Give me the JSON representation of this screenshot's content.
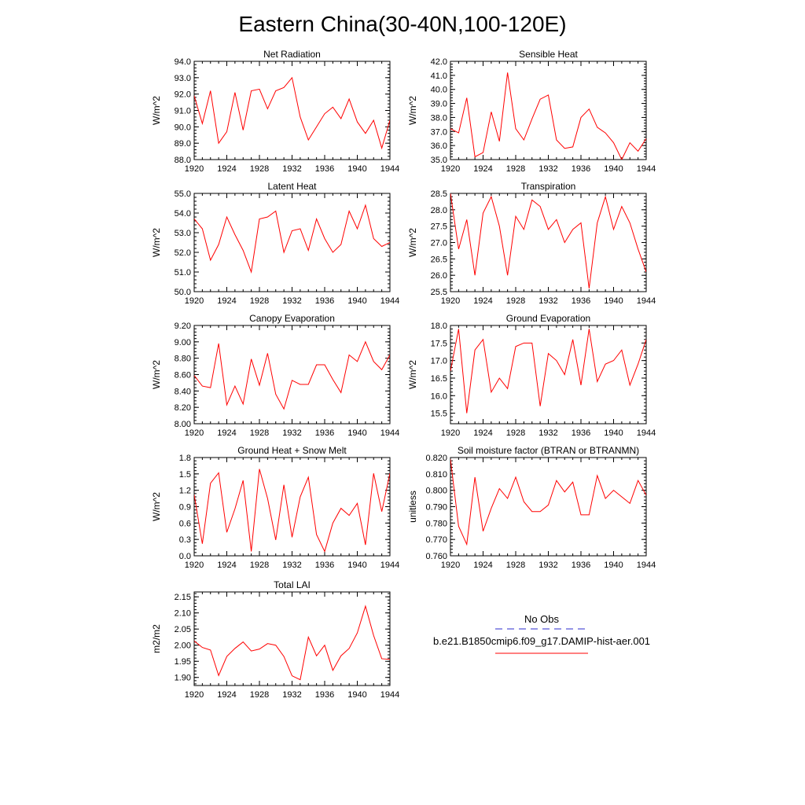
{
  "figure": {
    "title": "Eastern China(30-40N,100-120E)"
  },
  "legend": {
    "entries": [
      {
        "label": "No Obs",
        "color": "#2b2bcc",
        "dash": "dashed"
      },
      {
        "label": "b.e21.B1850cmip6.f09_g17.DAMIP-hist-aer.001",
        "color": "#ff0000",
        "dash": "solid"
      }
    ]
  },
  "chart_data": [
    {
      "type": "line",
      "title": "Net Radiation",
      "ylabel": "W/m^2",
      "xlim": [
        1920,
        1944
      ],
      "ylim": [
        88.0,
        94.0
      ],
      "xticks": [
        "1920",
        "1924",
        "1928",
        "1932",
        "1936",
        "1940",
        "1944"
      ],
      "yticks": [
        "88.0",
        "89.0",
        "90.0",
        "91.0",
        "92.0",
        "93.0",
        "94.0"
      ],
      "series": [
        {
          "color": "#ff0000",
          "x": [
            1920,
            1921,
            1922,
            1923,
            1924,
            1925,
            1926,
            1927,
            1928,
            1929,
            1930,
            1931,
            1932,
            1933,
            1934,
            1935,
            1936,
            1937,
            1938,
            1939,
            1940,
            1941,
            1942,
            1943,
            1944
          ],
          "values": [
            91.9,
            90.2,
            92.2,
            89.0,
            89.7,
            92.1,
            89.8,
            92.2,
            92.3,
            91.1,
            92.2,
            92.4,
            93.0,
            90.6,
            89.2,
            90.0,
            90.8,
            91.2,
            90.5,
            91.7,
            90.3,
            89.6,
            90.4,
            88.7,
            90.4
          ]
        }
      ]
    },
    {
      "type": "line",
      "title": "Sensible Heat",
      "ylabel": "W/m^2",
      "xlim": [
        1920,
        1944
      ],
      "ylim": [
        35.0,
        42.0
      ],
      "xticks": [
        "1920",
        "1924",
        "1928",
        "1932",
        "1936",
        "1940",
        "1944"
      ],
      "yticks": [
        "35.0",
        "36.0",
        "37.0",
        "38.0",
        "39.0",
        "40.0",
        "41.0",
        "42.0"
      ],
      "series": [
        {
          "color": "#ff0000",
          "x": [
            1920,
            1921,
            1922,
            1923,
            1924,
            1925,
            1926,
            1927,
            1928,
            1929,
            1930,
            1931,
            1932,
            1933,
            1934,
            1935,
            1936,
            1937,
            1938,
            1939,
            1940,
            1941,
            1942,
            1943,
            1944
          ],
          "values": [
            37.2,
            36.9,
            39.4,
            35.2,
            35.5,
            38.4,
            36.3,
            41.2,
            37.2,
            36.4,
            37.9,
            39.3,
            39.6,
            36.4,
            35.8,
            35.9,
            38.0,
            38.6,
            37.3,
            36.9,
            36.2,
            35.0,
            36.2,
            35.6,
            36.5
          ]
        }
      ]
    },
    {
      "type": "line",
      "title": "Latent Heat",
      "ylabel": "W/m^2",
      "xlim": [
        1920,
        1944
      ],
      "ylim": [
        50.0,
        55.0
      ],
      "xticks": [
        "1920",
        "1924",
        "1928",
        "1932",
        "1936",
        "1940",
        "1944"
      ],
      "yticks": [
        "50.0",
        "51.0",
        "52.0",
        "53.0",
        "54.0",
        "55.0"
      ],
      "series": [
        {
          "color": "#ff0000",
          "x": [
            1920,
            1921,
            1922,
            1923,
            1924,
            1925,
            1926,
            1927,
            1928,
            1929,
            1930,
            1931,
            1932,
            1933,
            1934,
            1935,
            1936,
            1937,
            1938,
            1939,
            1940,
            1941,
            1942,
            1943,
            1944
          ],
          "values": [
            53.7,
            53.2,
            51.6,
            52.4,
            53.8,
            52.9,
            52.1,
            51.0,
            53.7,
            53.8,
            54.1,
            52.0,
            53.1,
            53.2,
            52.1,
            53.7,
            52.7,
            52.0,
            52.4,
            54.1,
            53.2,
            54.4,
            52.7,
            52.3,
            52.5
          ]
        }
      ]
    },
    {
      "type": "line",
      "title": "Transpiration",
      "ylabel": "W/m^2",
      "xlim": [
        1920,
        1944
      ],
      "ylim": [
        25.5,
        28.5
      ],
      "xticks": [
        "1920",
        "1924",
        "1928",
        "1932",
        "1936",
        "1940",
        "1944"
      ],
      "yticks": [
        "25.5",
        "26.0",
        "26.5",
        "27.0",
        "27.5",
        "28.0",
        "28.5"
      ],
      "series": [
        {
          "color": "#ff0000",
          "x": [
            1920,
            1921,
            1922,
            1923,
            1924,
            1925,
            1926,
            1927,
            1928,
            1929,
            1930,
            1931,
            1932,
            1933,
            1934,
            1935,
            1936,
            1937,
            1938,
            1939,
            1940,
            1941,
            1942,
            1943,
            1944
          ],
          "values": [
            28.5,
            26.8,
            27.7,
            26.0,
            27.9,
            28.4,
            27.5,
            26.0,
            27.8,
            27.4,
            28.3,
            28.1,
            27.4,
            27.7,
            27.0,
            27.4,
            27.6,
            25.6,
            27.6,
            28.4,
            27.4,
            28.1,
            27.6,
            26.8,
            26.1
          ]
        }
      ]
    },
    {
      "type": "line",
      "title": "Canopy Evaporation",
      "ylabel": "W/m^2",
      "xlim": [
        1920,
        1944
      ],
      "ylim": [
        8.0,
        9.2
      ],
      "xticks": [
        "1920",
        "1924",
        "1928",
        "1932",
        "1936",
        "1940",
        "1944"
      ],
      "yticks": [
        "8.00",
        "8.20",
        "8.40",
        "8.60",
        "8.80",
        "9.00",
        "9.20"
      ],
      "series": [
        {
          "color": "#ff0000",
          "x": [
            1920,
            1921,
            1922,
            1923,
            1924,
            1925,
            1926,
            1927,
            1928,
            1929,
            1930,
            1931,
            1932,
            1933,
            1934,
            1935,
            1936,
            1937,
            1938,
            1939,
            1940,
            1941,
            1942,
            1943,
            1944
          ],
          "values": [
            8.59,
            8.46,
            8.44,
            8.98,
            8.23,
            8.46,
            8.24,
            8.79,
            8.47,
            8.86,
            8.36,
            8.18,
            8.53,
            8.48,
            8.48,
            8.72,
            8.72,
            8.54,
            8.38,
            8.84,
            8.76,
            9.0,
            8.76,
            8.66,
            8.84
          ]
        }
      ]
    },
    {
      "type": "line",
      "title": "Ground Evaporation",
      "ylabel": "W/m^2",
      "xlim": [
        1920,
        1944
      ],
      "ylim": [
        15.2,
        18.0
      ],
      "xticks": [
        "1920",
        "1924",
        "1928",
        "1932",
        "1936",
        "1940",
        "1944"
      ],
      "yticks": [
        "15.5",
        "16.0",
        "16.5",
        "17.0",
        "17.5",
        "18.0"
      ],
      "series": [
        {
          "color": "#ff0000",
          "x": [
            1920,
            1921,
            1922,
            1923,
            1924,
            1925,
            1926,
            1927,
            1928,
            1929,
            1930,
            1931,
            1932,
            1933,
            1934,
            1935,
            1936,
            1937,
            1938,
            1939,
            1940,
            1941,
            1942,
            1943,
            1944
          ],
          "values": [
            16.7,
            17.9,
            15.5,
            17.3,
            17.6,
            16.1,
            16.5,
            16.2,
            17.4,
            17.5,
            17.5,
            15.7,
            17.2,
            17.0,
            16.6,
            17.6,
            16.3,
            17.9,
            16.4,
            16.9,
            17.0,
            17.3,
            16.3,
            16.9,
            17.6
          ]
        }
      ]
    },
    {
      "type": "line",
      "title": "Ground Heat + Snow Melt",
      "ylabel": "W/m^2",
      "xlim": [
        1920,
        1944
      ],
      "ylim": [
        0.0,
        1.8
      ],
      "xticks": [
        "1920",
        "1924",
        "1928",
        "1932",
        "1936",
        "1940",
        "1944"
      ],
      "yticks": [
        "0.0",
        "0.3",
        "0.6",
        "0.9",
        "1.2",
        "1.5",
        "1.8"
      ],
      "series": [
        {
          "color": "#ff0000",
          "x": [
            1920,
            1921,
            1922,
            1923,
            1924,
            1925,
            1926,
            1927,
            1928,
            1929,
            1930,
            1931,
            1932,
            1933,
            1934,
            1935,
            1936,
            1937,
            1938,
            1939,
            1940,
            1941,
            1942,
            1943,
            1944
          ],
          "values": [
            1.12,
            0.22,
            1.33,
            1.52,
            0.43,
            0.86,
            1.38,
            0.08,
            1.59,
            1.05,
            0.29,
            1.3,
            0.34,
            1.08,
            1.44,
            0.39,
            0.08,
            0.6,
            0.87,
            0.74,
            0.96,
            0.2,
            1.51,
            0.81,
            1.51
          ]
        }
      ]
    },
    {
      "type": "line",
      "title": "Soil moisture factor (BTRAN or BTRANMN)",
      "ylabel": "unitless",
      "xlim": [
        1920,
        1944
      ],
      "ylim": [
        0.76,
        0.82
      ],
      "xticks": [
        "1920",
        "1924",
        "1928",
        "1932",
        "1936",
        "1940",
        "1944"
      ],
      "yticks": [
        "0.760",
        "0.770",
        "0.780",
        "0.790",
        "0.800",
        "0.810",
        "0.820"
      ],
      "series": [
        {
          "color": "#ff0000",
          "x": [
            1920,
            1921,
            1922,
            1923,
            1924,
            1925,
            1926,
            1927,
            1928,
            1929,
            1930,
            1931,
            1932,
            1933,
            1934,
            1935,
            1936,
            1937,
            1938,
            1939,
            1940,
            1941,
            1942,
            1943,
            1944
          ],
          "values": [
            0.819,
            0.778,
            0.767,
            0.808,
            0.775,
            0.789,
            0.801,
            0.795,
            0.808,
            0.793,
            0.787,
            0.787,
            0.791,
            0.806,
            0.799,
            0.805,
            0.785,
            0.785,
            0.809,
            0.795,
            0.8,
            0.796,
            0.792,
            0.806,
            0.797
          ]
        }
      ]
    },
    {
      "type": "line",
      "title": "Total LAI",
      "ylabel": "m2/m2",
      "xlim": [
        1920,
        1944
      ],
      "ylim": [
        1.875,
        2.165
      ],
      "xticks": [
        "1920",
        "1924",
        "1928",
        "1932",
        "1936",
        "1940",
        "1944"
      ],
      "yticks": [
        "1.90",
        "1.95",
        "2.00",
        "2.05",
        "2.10",
        "2.15"
      ],
      "series": [
        {
          "color": "#ff0000",
          "x": [
            1920,
            1921,
            1922,
            1923,
            1924,
            1925,
            1926,
            1927,
            1928,
            1929,
            1930,
            1931,
            1932,
            1933,
            1934,
            1935,
            1936,
            1937,
            1938,
            1939,
            1940,
            1941,
            1942,
            1943,
            1944
          ],
          "values": [
            2.013,
            1.993,
            1.985,
            1.906,
            1.965,
            1.99,
            2.01,
            1.982,
            1.988,
            2.005,
            2.0,
            1.965,
            1.905,
            1.893,
            2.025,
            1.967,
            2.0,
            1.922,
            1.967,
            1.99,
            2.038,
            2.121,
            2.03,
            1.958,
            1.956
          ]
        }
      ]
    }
  ]
}
